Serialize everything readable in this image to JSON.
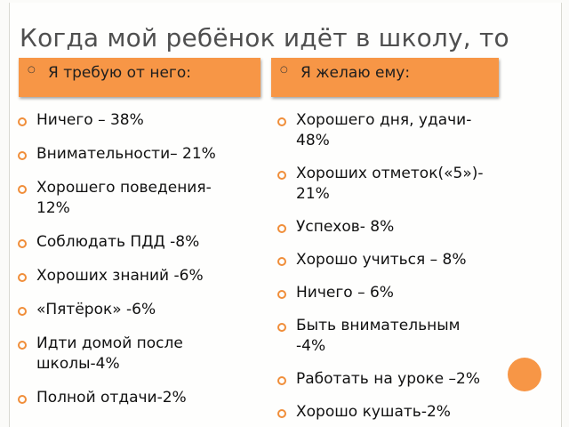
{
  "title": "Когда мой ребёнок идёт в школу, то",
  "left_header": "Я требую от него:",
  "right_header": "Я желаю ему:",
  "left_items": [
    "Ничего – 38%",
    "Внимательности– 21%",
    "Хорошего поведения-\n12%",
    "Соблюдать ПДД -8%",
    "Хороших знаний -6%",
    "«Пятёрок» -6%",
    "Идти домой после\nшколы-4%",
    "Полной отдачи-2%"
  ],
  "right_items": [
    "Хорошего дня, удачи-\n48%",
    "Хороших отметок(«5»)-\n21%",
    "Успехов- 8%",
    "Хорошо учиться – 8%",
    "Ничего – 6%",
    "Быть внимательным\n-4%",
    "Работать на уроке –2%",
    "Хорошо кушать-2%"
  ],
  "colors": {
    "accent": "#f79646",
    "bullet": "#f08e3a",
    "title": "#4f4f4f"
  }
}
